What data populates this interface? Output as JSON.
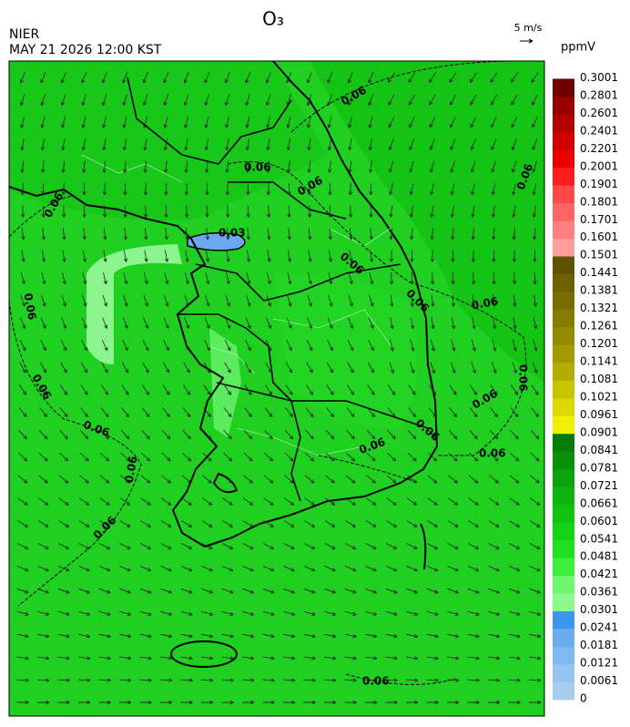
{
  "header": {
    "title": "O₃",
    "agency": "NIER",
    "datetime": "MAY 21 2026 12:00 KST",
    "wind_scale": "5 m/s",
    "unit": "ppmV"
  },
  "colorbar": {
    "ticks": [
      0,
      0.0061,
      0.0121,
      0.0181,
      0.0241,
      0.0301,
      0.0361,
      0.0421,
      0.0481,
      0.0541,
      0.0601,
      0.0661,
      0.0721,
      0.0781,
      0.0841,
      0.0901,
      0.0961,
      0.1021,
      0.1081,
      0.1141,
      0.1201,
      0.1261,
      0.1321,
      0.1381,
      0.1441,
      0.1501,
      0.1601,
      0.1701,
      0.1801,
      0.1901,
      0.2001,
      0.2201,
      0.2401,
      0.2601,
      0.2801,
      0.3001
    ],
    "colors": [
      "#a6cdee",
      "#94c4ef",
      "#7fb9ef",
      "#6aadef",
      "#3c96f0",
      "#8cfa8c",
      "#6cf86c",
      "#3cf03c",
      "#1ee01e",
      "#14d214",
      "#10c410",
      "#0eb40e",
      "#0ca40c",
      "#089008",
      "#067c06",
      "#f0f000",
      "#dcd800",
      "#c8c400",
      "#b4ac00",
      "#a49a00",
      "#948a00",
      "#867c00",
      "#786e00",
      "#6c6200",
      "#5e5400",
      "#ff9c9c",
      "#ff8080",
      "#ff6464",
      "#ff4848",
      "#ff1c1c",
      "#ec0000",
      "#d00000",
      "#b40000",
      "#960000",
      "#700000"
    ]
  },
  "contour_labels": [
    0.06,
    0.06,
    0.06,
    0.06,
    0.06,
    0.06,
    0.06,
    0.06,
    0.06,
    0.06,
    0.03,
    0.06,
    0.06,
    0.06,
    0.06,
    0.06,
    0.06,
    0.06,
    0.06,
    0.06
  ]
}
